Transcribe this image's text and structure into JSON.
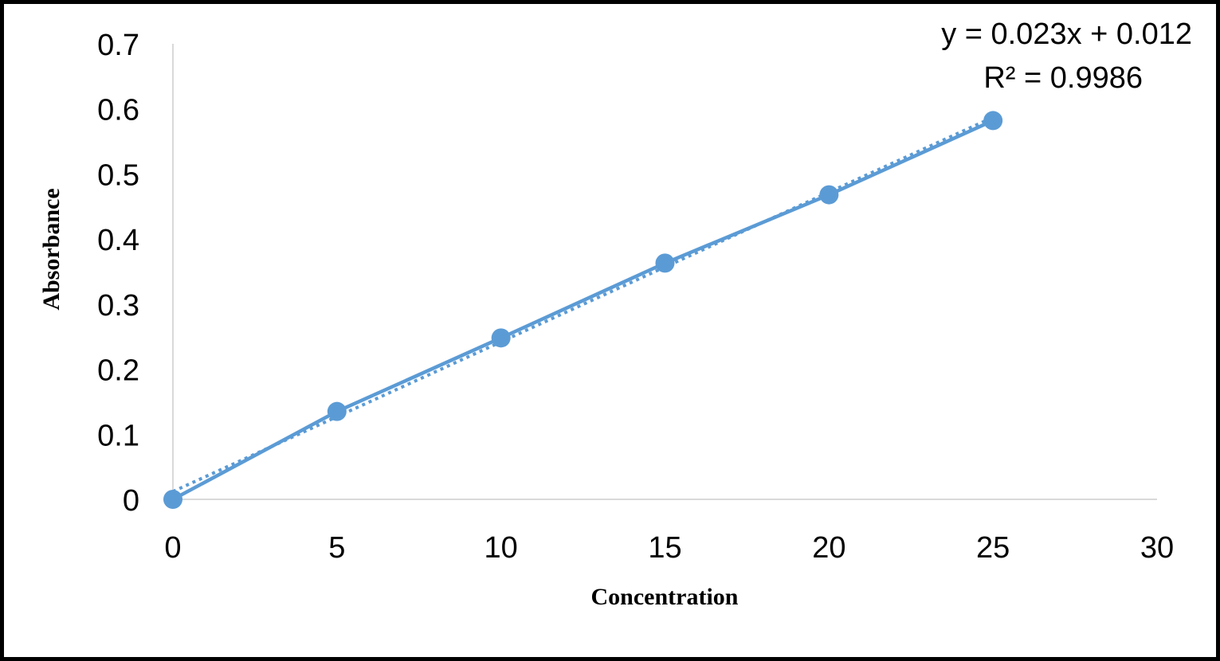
{
  "chart_data": {
    "type": "scatter",
    "title": "",
    "xlabel": "Concentration",
    "ylabel": "Absorbance",
    "xlim": [
      0,
      30
    ],
    "ylim": [
      0,
      0.7
    ],
    "x_ticks": [
      "0",
      "5",
      "10",
      "15",
      "20",
      "25",
      "30"
    ],
    "y_ticks": [
      "0",
      "0.1",
      "0.2",
      "0.3",
      "0.4",
      "0.5",
      "0.6",
      "0.7"
    ],
    "grid": false,
    "series": [
      {
        "x": [
          0,
          5,
          10,
          15,
          20,
          25
        ],
        "y": [
          0,
          0.135,
          0.248,
          0.363,
          0.468,
          0.582
        ],
        "color": "#5b9bd5",
        "connected": true
      }
    ],
    "trendline": {
      "type": "linear",
      "slope": 0.023,
      "intercept": 0.012,
      "style": "dotted",
      "color": "#5b9bd5",
      "equation_label": "y = 0.023x + 0.012",
      "r2_label": "R² = 0.9986"
    }
  }
}
